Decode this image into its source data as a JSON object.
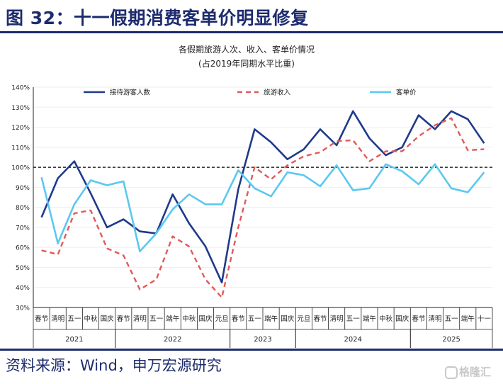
{
  "header": {
    "title": "图 32：十一假期消费客单价明显修复"
  },
  "footer": {
    "source": "资料来源：Wind，申万宏源研究",
    "watermark": "格隆汇"
  },
  "chart_data": {
    "type": "line",
    "title": "各假期旅游人次、收入、客单价情况",
    "subtitle": "(占2019年同期水平比重)",
    "x_labels": [
      "春节",
      "清明",
      "五一",
      "中秋",
      "国庆",
      "春节",
      "清明",
      "五一",
      "端午",
      "中秋",
      "国庆",
      "元旦",
      "春节",
      "五一",
      "端午",
      "国庆",
      "元旦",
      "春节",
      "清明",
      "五一",
      "端午",
      "中秋",
      "国庆",
      "春节",
      "清明",
      "五一",
      "端午",
      "十一"
    ],
    "year_groups": [
      {
        "label": "2021",
        "start": 0,
        "end": 4
      },
      {
        "label": "2022",
        "start": 5,
        "end": 11
      },
      {
        "label": "2023",
        "start": 12,
        "end": 15
      },
      {
        "label": "2024",
        "start": 16,
        "end": 22
      },
      {
        "label": "2025",
        "start": 23,
        "end": 27
      }
    ],
    "y_ticks": [
      "30%",
      "40%",
      "50%",
      "60%",
      "70%",
      "80%",
      "90%",
      "100%",
      "110%",
      "120%",
      "130%",
      "140%"
    ],
    "ylim": [
      30,
      140
    ],
    "reference_line": 100,
    "legend": {
      "placement": "top"
    },
    "series": [
      {
        "name": "接待游客人数",
        "color": "#1f3a8a",
        "style": "solid",
        "values": [
          75,
          94.5,
          103,
          87,
          70,
          74,
          68,
          67,
          86.5,
          72,
          60.5,
          42.5,
          89,
          119,
          112.5,
          104,
          109,
          119,
          111,
          128,
          114.5,
          106,
          110,
          126,
          119,
          128,
          124,
          112
        ]
      },
      {
        "name": "旅游收入",
        "color": "#e05a5a",
        "style": "dashed",
        "values": [
          58.5,
          56.5,
          77,
          78.5,
          59.5,
          56,
          39,
          44,
          65.5,
          60.5,
          44,
          35,
          70,
          100,
          94,
          101,
          105.5,
          107.5,
          113,
          113.5,
          103,
          108,
          108,
          115.5,
          121,
          124.5,
          108.5,
          109
        ]
      },
      {
        "name": "客单价",
        "color": "#5bc8f0",
        "style": "solid",
        "values": [
          95,
          62,
          81.5,
          93.5,
          91,
          93,
          58,
          67,
          79,
          86.5,
          81.5,
          81.5,
          98.5,
          89.5,
          85.5,
          97.5,
          96,
          90.5,
          101,
          88.5,
          89.5,
          101.5,
          98,
          91.5,
          101.5,
          89.5,
          87.5,
          97.5
        ]
      }
    ]
  }
}
